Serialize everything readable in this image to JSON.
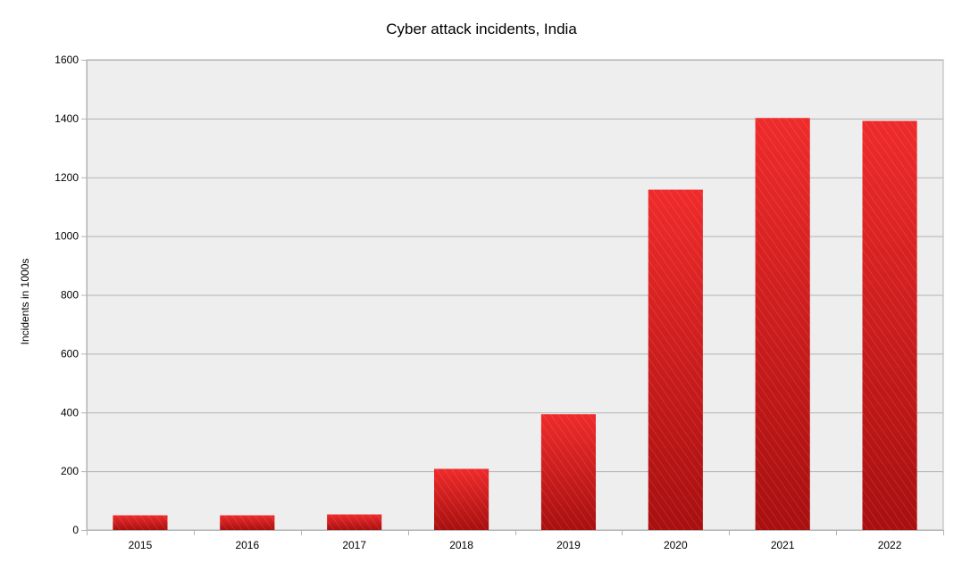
{
  "chart_data": {
    "type": "bar",
    "title": "Cyber attack incidents, India",
    "xlabel": "",
    "ylabel": "Incidents in 1000s",
    "categories": [
      "2015",
      "2016",
      "2017",
      "2018",
      "2019",
      "2020",
      "2021",
      "2022"
    ],
    "values": [
      50,
      50,
      53,
      208,
      394,
      1158,
      1402,
      1392
    ],
    "ylim": [
      0,
      1600
    ],
    "yticks": [
      0,
      200,
      400,
      600,
      800,
      1000,
      1200,
      1400,
      1600
    ],
    "grid": true,
    "legend": "none",
    "colors": {
      "bar_top": "#ef2b2b",
      "bar_bottom": "#a80f0f",
      "plot_background": "#eeeeee",
      "grid": "#b3b3b3",
      "axis": "#b3b3b3"
    }
  }
}
